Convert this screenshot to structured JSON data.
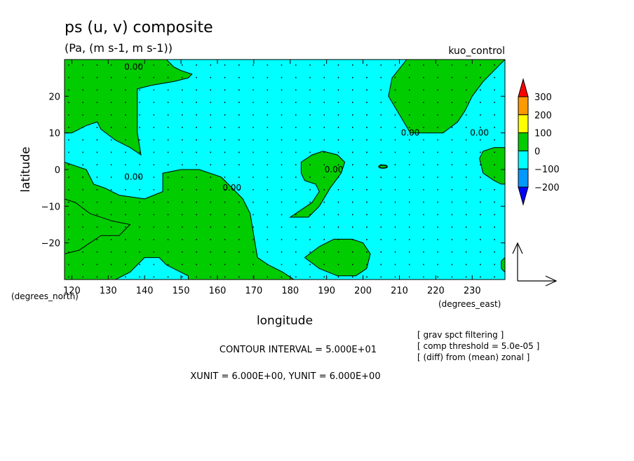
{
  "chart_data": {
    "type": "contour",
    "title": "ps (u, v) composite",
    "subtitle": "(Pa, (m s-1, m s-1))",
    "run_label": "kuo_control",
    "xlabel": "longitude",
    "ylabel": "latitude",
    "x_unit_label": "(degrees_east)",
    "y_unit_label": "(degrees_north)",
    "xlim": [
      118,
      239
    ],
    "ylim": [
      -30,
      30
    ],
    "x_ticks": [
      120,
      130,
      140,
      150,
      160,
      170,
      180,
      190,
      200,
      210,
      220,
      230
    ],
    "y_ticks": [
      20,
      10,
      0,
      -10,
      -20
    ],
    "y_tick_labels": [
      "20",
      "10",
      "0",
      "−10",
      "−20"
    ],
    "grid": false,
    "contour_labels": [
      {
        "text": "0.00",
        "x": 137,
        "y": 28
      },
      {
        "text": "0.00",
        "x": 137,
        "y": -2
      },
      {
        "text": "0.00",
        "x": 164,
        "y": -5
      },
      {
        "text": "0.00",
        "x": 192,
        "y": 0
      },
      {
        "text": "0.00",
        "x": 213,
        "y": 10
      },
      {
        "text": "0.00",
        "x": 232,
        "y": 10
      }
    ],
    "filled_regions_0_to_100": [
      [
        [
          118,
          27
        ],
        [
          121,
          25
        ],
        [
          124,
          22
        ],
        [
          121,
          20
        ],
        [
          123,
          17
        ],
        [
          127,
          17
        ],
        [
          130,
          19
        ],
        [
          134,
          22
        ],
        [
          134,
          27
        ],
        [
          138,
          30
        ],
        [
          118,
          30
        ]
      ],
      [
        [
          146,
          30
        ],
        [
          148,
          28
        ],
        [
          150,
          27
        ],
        [
          153,
          26
        ],
        [
          152,
          25
        ],
        [
          148,
          24
        ],
        [
          142,
          23
        ],
        [
          138,
          22
        ],
        [
          138,
          10
        ],
        [
          139,
          4
        ],
        [
          136,
          6
        ],
        [
          132,
          8
        ],
        [
          128,
          11
        ],
        [
          127,
          13
        ],
        [
          124,
          12
        ],
        [
          120,
          10
        ],
        [
          118,
          10
        ],
        [
          118,
          30
        ]
      ],
      [
        [
          118,
          2
        ],
        [
          121,
          1
        ],
        [
          124,
          0
        ],
        [
          126,
          -4
        ],
        [
          129,
          -5
        ],
        [
          133,
          -7
        ],
        [
          140,
          -8
        ],
        [
          145,
          -6
        ],
        [
          145,
          -1
        ],
        [
          150,
          0
        ],
        [
          155,
          0
        ],
        [
          161,
          -2
        ],
        [
          163,
          -4
        ],
        [
          167,
          -8
        ],
        [
          169,
          -12
        ],
        [
          170,
          -18
        ],
        [
          171,
          -24
        ],
        [
          174,
          -26
        ],
        [
          178,
          -28
        ],
        [
          181,
          -30
        ],
        [
          152,
          -30
        ],
        [
          152,
          -29
        ],
        [
          146,
          -26
        ],
        [
          144,
          -24
        ],
        [
          140,
          -24
        ],
        [
          136,
          -28
        ],
        [
          132,
          -30
        ],
        [
          118,
          -30
        ],
        [
          118,
          -8
        ],
        [
          121,
          -9
        ],
        [
          125,
          -12
        ],
        [
          131,
          -14
        ],
        [
          136,
          -15
        ],
        [
          133,
          -18
        ],
        [
          128,
          -18
        ],
        [
          125,
          -20
        ],
        [
          122,
          -22
        ],
        [
          118,
          -23
        ]
      ],
      [
        [
          212,
          30
        ],
        [
          208,
          25
        ],
        [
          207,
          20
        ],
        [
          210,
          15
        ],
        [
          213,
          10
        ],
        [
          222,
          10
        ],
        [
          226,
          13
        ],
        [
          228,
          16
        ],
        [
          230,
          20
        ],
        [
          233,
          24
        ],
        [
          236,
          27
        ],
        [
          238,
          29
        ],
        [
          239,
          30
        ]
      ],
      [
        [
          180,
          -13
        ],
        [
          183,
          -11
        ],
        [
          186,
          -9
        ],
        [
          188,
          -6
        ],
        [
          187,
          -4
        ],
        [
          184,
          -3
        ],
        [
          183,
          -1
        ],
        [
          183,
          2
        ],
        [
          186,
          4
        ],
        [
          189,
          5
        ],
        [
          193,
          4
        ],
        [
          195,
          2
        ],
        [
          194,
          -1
        ],
        [
          191,
          -5
        ],
        [
          188,
          -10
        ],
        [
          185,
          -13
        ],
        [
          180,
          -13
        ]
      ],
      [
        [
          184,
          -24
        ],
        [
          188,
          -21
        ],
        [
          192,
          -19
        ],
        [
          197,
          -19
        ],
        [
          200,
          -20
        ],
        [
          202,
          -23
        ],
        [
          201,
          -27
        ],
        [
          198,
          -29
        ],
        [
          193,
          -29
        ],
        [
          188,
          -27
        ],
        [
          184,
          -24
        ]
      ],
      [
        [
          239,
          6
        ],
        [
          236,
          6
        ],
        [
          233,
          5
        ],
        [
          232,
          3
        ],
        [
          233,
          -1
        ],
        [
          236,
          -3
        ],
        [
          238,
          -4
        ],
        [
          239,
          -4
        ]
      ],
      [
        [
          239,
          -24
        ],
        [
          238,
          -25
        ],
        [
          238,
          -27
        ],
        [
          239,
          -28
        ]
      ]
    ],
    "colorbar": {
      "labels": [
        "300",
        "200",
        "100",
        "0",
        "−100",
        "−200"
      ],
      "colors": [
        "#ff0000",
        "#ff9900",
        "#ffff00",
        "#00cc00",
        "#00ffff",
        "#0099ff",
        "#0000ff"
      ]
    },
    "colors": {
      "negative_fill": "#00ffff",
      "positive_fill": "#00cc00",
      "contour_line": "#000000",
      "vector": "#000000"
    }
  },
  "info": {
    "contour_interval": "CONTOUR INTERVAL = 5.000E+01",
    "units": "XUNIT = 6.000E+00, YUNIT = 6.000E+00",
    "notes": [
      "[ grav spct filtering ]",
      "[ comp threshold = 5.0e-05 ]",
      "[ (diff) from (mean) zonal ]"
    ]
  }
}
